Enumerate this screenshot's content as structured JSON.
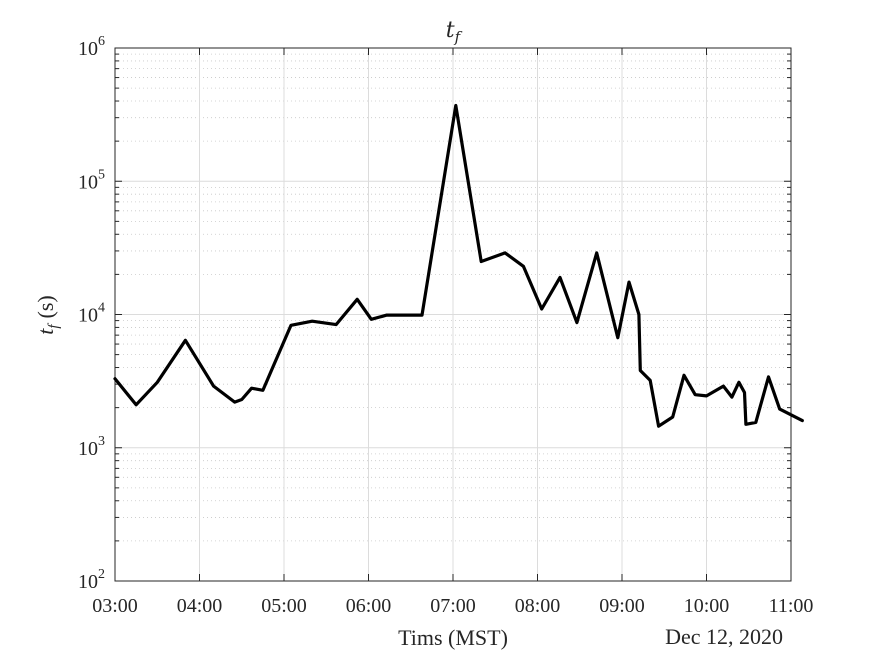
{
  "chart_data": {
    "type": "line",
    "title": "t",
    "title_subscript": "f",
    "xlabel": "Tims (MST)",
    "ylabel_var": "t",
    "ylabel_sub": "f",
    "ylabel_unit": "(s)",
    "date_label": "Dec 12, 2020",
    "yscale": "log",
    "ylim": [
      100,
      1000000
    ],
    "xlim": [
      "03:00",
      "11:00"
    ],
    "grid": true,
    "x_tick_labels": [
      "03:00",
      "04:00",
      "05:00",
      "06:00",
      "07:00",
      "08:00",
      "09:00",
      "10:00",
      "11:00"
    ],
    "y_tick_labels": [
      {
        "base": "10",
        "exp": "2"
      },
      {
        "base": "10",
        "exp": "3"
      },
      {
        "base": "10",
        "exp": "4"
      },
      {
        "base": "10",
        "exp": "5"
      },
      {
        "base": "10",
        "exp": "6"
      }
    ],
    "series": [
      {
        "color": "#000000",
        "x": [
          "03:00",
          "03:15",
          "03:30",
          "03:50",
          "04:10",
          "04:25",
          "04:30",
          "04:37",
          "04:45",
          "04:52",
          "05:05",
          "05:20",
          "05:37",
          "05:52",
          "06:02",
          "06:13",
          "06:38",
          "07:02",
          "07:20",
          "07:37",
          "07:50",
          "08:03",
          "08:16",
          "08:28",
          "08:42",
          "08:57",
          "09:05",
          "09:12",
          "09:13",
          "09:20",
          "09:26",
          "09:36",
          "09:44",
          "09:52",
          "10:00",
          "10:12",
          "10:18",
          "10:23",
          "10:27",
          "10:28",
          "10:35",
          "10:44",
          "10:52",
          "11:08"
        ],
        "y": [
          3300,
          2100,
          3100,
          6400,
          2900,
          2200,
          2300,
          2800,
          2700,
          4000,
          8300,
          8900,
          8400,
          13000,
          9200,
          9900,
          9900,
          370000,
          25000,
          29000,
          23000,
          11000,
          19000,
          8700,
          29000,
          6700,
          17500,
          10000,
          3800,
          3200,
          1450,
          1700,
          3500,
          2500,
          2450,
          2900,
          2400,
          3100,
          2600,
          1500,
          1550,
          3400,
          1950,
          1600
        ]
      }
    ]
  }
}
